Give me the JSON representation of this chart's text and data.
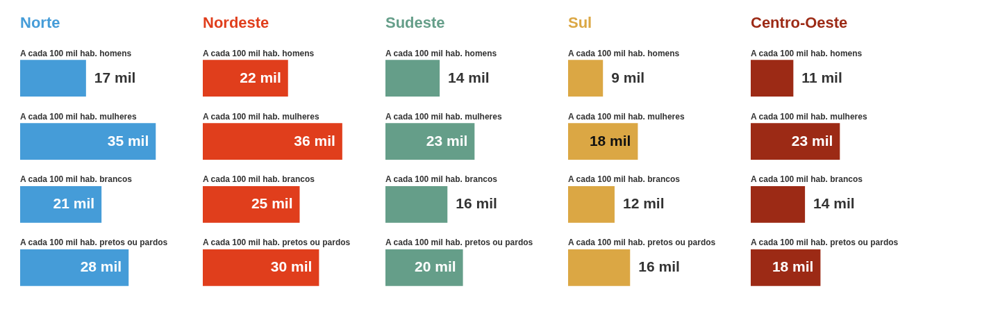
{
  "chart_data": [
    {
      "type": "bar",
      "orientation": "horizontal",
      "title": "Norte",
      "categories": [
        "A cada 100 mil hab. homens",
        "A cada 100 mil hab. mulheres",
        "A cada 100 mil hab. brancos",
        "A cada 100 mil hab. pretos ou pardos"
      ],
      "series": [
        {
          "color": "#459cd8",
          "values": [
            17,
            35,
            21,
            28
          ],
          "value_labels": [
            "17 mil",
            "35 mil",
            "21 mil",
            "28 mil"
          ]
        }
      ]
    },
    {
      "type": "bar",
      "orientation": "horizontal",
      "title": "Nordeste",
      "categories": [
        "A cada 100 mil hab. homens",
        "A cada 100 mil hab. mulheres",
        "A cada 100 mil hab. brancos",
        "A cada 100 mil hab. pretos ou pardos"
      ],
      "series": [
        {
          "color": "#e03e1c",
          "values": [
            22,
            36,
            25,
            30
          ],
          "value_labels": [
            "22 mil",
            "36 mil",
            "25 mil",
            "30 mil"
          ]
        }
      ]
    },
    {
      "type": "bar",
      "orientation": "horizontal",
      "title": "Sudeste",
      "categories": [
        "A cada 100 mil hab. homens",
        "A cada 100 mil hab. mulheres",
        "A cada 100 mil hab. brancos",
        "A cada 100 mil hab. pretos ou pardos"
      ],
      "series": [
        {
          "color": "#659e89",
          "values": [
            14,
            23,
            16,
            20
          ],
          "value_labels": [
            "14 mil",
            "23 mil",
            "16 mil",
            "20 mil"
          ]
        }
      ]
    },
    {
      "type": "bar",
      "orientation": "horizontal",
      "title": "Sul",
      "categories": [
        "A cada 100 mil hab. homens",
        "A cada 100 mil hab. mulheres",
        "A cada 100 mil hab. brancos",
        "A cada 100 mil hab. pretos ou pardos"
      ],
      "series": [
        {
          "color": "#dba744",
          "values": [
            9,
            18,
            12,
            16
          ],
          "value_labels": [
            "9 mil",
            "18 mil",
            "12 mil",
            "16 mil"
          ]
        }
      ]
    },
    {
      "type": "bar",
      "orientation": "horizontal",
      "title": "Centro-Oeste",
      "categories": [
        "A cada 100 mil hab. homens",
        "A cada 100 mil hab. mulheres",
        "A cada 100 mil hab. brancos",
        "A cada 100 mil hab. pretos ou pardos"
      ],
      "series": [
        {
          "color": "#9c2a15",
          "values": [
            11,
            23,
            14,
            18
          ],
          "value_labels": [
            "11 mil",
            "23 mil",
            "14 mil",
            "18 mil"
          ]
        }
      ]
    }
  ]
}
